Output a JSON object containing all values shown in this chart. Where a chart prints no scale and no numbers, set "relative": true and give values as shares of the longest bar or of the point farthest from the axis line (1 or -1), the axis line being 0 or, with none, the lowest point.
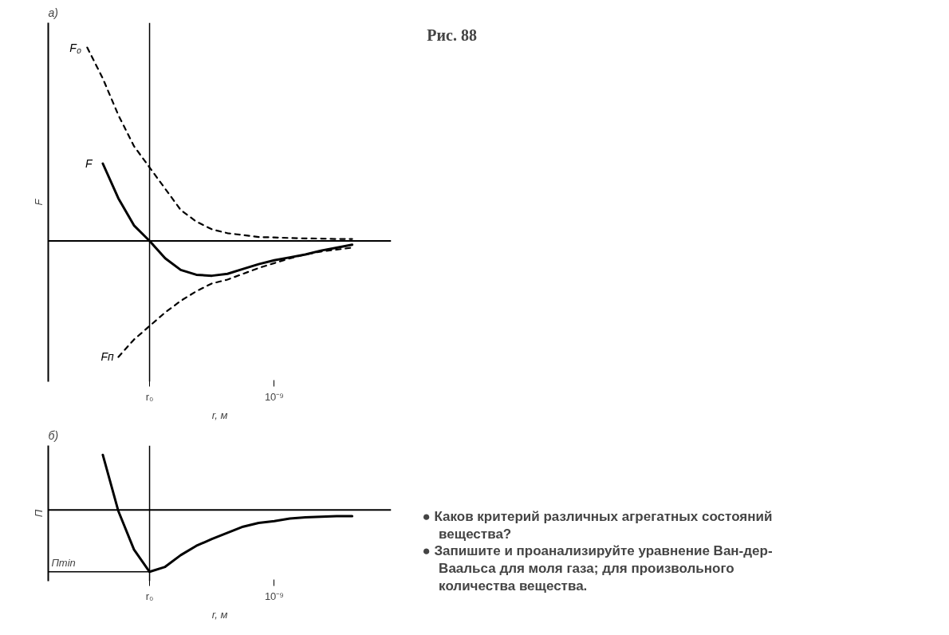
{
  "chart_data": [
    {
      "type": "line",
      "title": "а)",
      "xlabel": "r, м",
      "ylabel": "F",
      "relative": true,
      "categories": [
        null,
        null,
        null,
        null,
        "r₀",
        null,
        null,
        null,
        null,
        null,
        null,
        null,
        "10⁻⁹",
        null,
        null,
        null,
        null,
        null
      ],
      "ref_lines": [
        {
          "axis": "x",
          "value": "r₀"
        }
      ],
      "series": [
        {
          "name": "F₀",
          "color": "#000000",
          "line_style": "dashed",
          "values": [
            1.0,
            0.84,
            0.65,
            0.49,
            0.38,
            0.27,
            0.16,
            0.1,
            0.06,
            0.04,
            0.03,
            0.02,
            0.018,
            0.015,
            0.013,
            0.012,
            0.01,
            0.01
          ]
        },
        {
          "name": "F",
          "color": "#000000",
          "line_style": "solid",
          "values": [
            null,
            0.4,
            0.22,
            0.08,
            0,
            -0.09,
            -0.15,
            -0.175,
            -0.18,
            -0.17,
            -0.145,
            -0.12,
            -0.1,
            -0.085,
            -0.07,
            -0.05,
            -0.035,
            -0.02
          ]
        },
        {
          "name": "Fп",
          "color": "#000000",
          "line_style": "dashed",
          "values": [
            null,
            null,
            -0.6,
            -0.51,
            -0.44,
            -0.37,
            -0.31,
            -0.26,
            -0.22,
            -0.2,
            -0.17,
            -0.14,
            -0.115,
            -0.09,
            -0.07,
            -0.055,
            -0.045,
            -0.035
          ]
        }
      ]
    },
    {
      "type": "line",
      "title": "б)",
      "xlabel": "r, м",
      "ylabel": "П",
      "relative": true,
      "categories": [
        null,
        null,
        null,
        null,
        "r₀",
        null,
        null,
        null,
        null,
        null,
        null,
        null,
        "10⁻⁹",
        null,
        null,
        null,
        null,
        null
      ],
      "ref_lines": [
        {
          "axis": "x",
          "value": "r₀"
        },
        {
          "axis": "y",
          "value": -1,
          "label": "Пmin"
        }
      ],
      "series": [
        {
          "color": "#000000",
          "line_style": "solid",
          "values": [
            null,
            0.89,
            -0.02,
            -0.64,
            -1,
            -0.92,
            -0.73,
            -0.58,
            -0.47,
            -0.37,
            -0.27,
            -0.21,
            -0.18,
            -0.14,
            -0.12,
            -0.11,
            -0.1,
            -0.1
          ]
        }
      ]
    },
    {
      "type": "other",
      "title": "Рис. 88",
      "annotations": [
        "● Каков критерий различных агрегатных состояний вещества?",
        "● Запишите и проанализируйте уравнение Ван-дер-Ваальса для моля газа; для произвольного количества вещества."
      ]
    }
  ]
}
